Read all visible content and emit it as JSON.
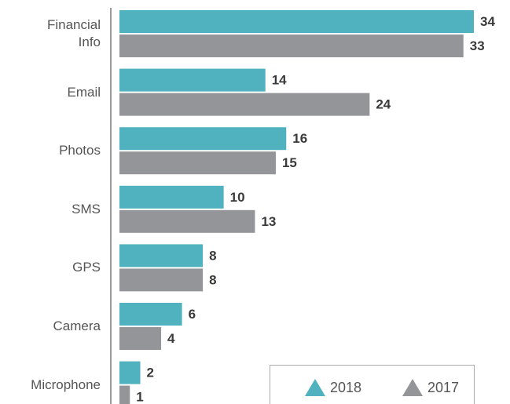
{
  "chart_data": {
    "type": "bar",
    "orientation": "horizontal",
    "categories": [
      "Financial Info",
      "Email",
      "Photos",
      "SMS",
      "GPS",
      "Camera",
      "Microphone"
    ],
    "series": [
      {
        "name": "2018",
        "color": "#4fb2be",
        "values": [
          34,
          14,
          16,
          10,
          8,
          6,
          2
        ]
      },
      {
        "name": "2017",
        "color": "#939598",
        "values": [
          33,
          24,
          15,
          13,
          8,
          4,
          1
        ]
      }
    ]
  }
}
